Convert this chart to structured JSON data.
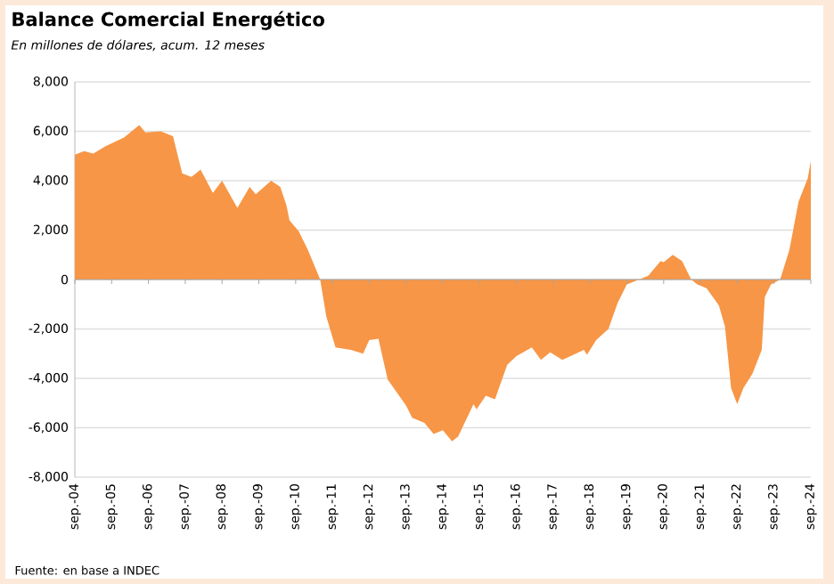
{
  "chart_data": {
    "type": "area",
    "title": "Balance Comercial Energético",
    "subtitle": "En millones de dólares, acum. 12 meses",
    "annotations": [
      "Fuente: en base a INDEC"
    ],
    "x": [
      "2004-09",
      "2004-12",
      "2005-03",
      "2005-07",
      "2006-01",
      "2006-06",
      "2006-08",
      "2007-01",
      "2007-05",
      "2007-08",
      "2007-11",
      "2008-02",
      "2008-06",
      "2008-09",
      "2009-02",
      "2009-06",
      "2009-08",
      "2010-01",
      "2010-04",
      "2010-06",
      "2010-07",
      "2010-10",
      "2011-01",
      "2011-05",
      "2011-07",
      "2011-10",
      "2012-03",
      "2012-07",
      "2012-09",
      "2012-12",
      "2013-03",
      "2013-09",
      "2013-11",
      "2014-03",
      "2014-06",
      "2014-09",
      "2014-12",
      "2015-02",
      "2015-07",
      "2015-08",
      "2015-11",
      "2016-02",
      "2016-06",
      "2016-09",
      "2017-02",
      "2017-05",
      "2017-08",
      "2017-12",
      "2018-07",
      "2018-08",
      "2018-11",
      "2019-03",
      "2019-06",
      "2019-09",
      "2019-11",
      "2020-04",
      "2020-08",
      "2020-09",
      "2020-12",
      "2021-03",
      "2021-06",
      "2021-08",
      "2021-11",
      "2022-03",
      "2022-05",
      "2022-07",
      "2022-09",
      "2022-11",
      "2023-02",
      "2023-05",
      "2023-06",
      "2023-08",
      "2023-11",
      "2024-02",
      "2024-05",
      "2024-08",
      "2024-09"
    ],
    "series": [
      {
        "color": "#f79646",
        "values": [
          5050,
          5200,
          5100,
          5400,
          5750,
          6250,
          5950,
          6000,
          5800,
          4300,
          4150,
          4450,
          3500,
          4000,
          2900,
          3750,
          3450,
          4000,
          3750,
          3000,
          2400,
          1950,
          1200,
          0,
          -1500,
          -2750,
          -2850,
          -3000,
          -2450,
          -2400,
          -4050,
          -5100,
          -5600,
          -5800,
          -6250,
          -6100,
          -6550,
          -6350,
          -5050,
          -5250,
          -4700,
          -4850,
          -3450,
          -3100,
          -2750,
          -3250,
          -2950,
          -3250,
          -2850,
          -3050,
          -2450,
          -2000,
          -950,
          -200,
          -100,
          150,
          750,
          700,
          1000,
          750,
          0,
          -200,
          -350,
          -1050,
          -1900,
          -4400,
          -5050,
          -4400,
          -3800,
          -2850,
          -700,
          -200,
          0,
          1200,
          3150,
          4100,
          4800
        ]
      }
    ],
    "xlim": [
      "2004-09",
      "2024-09"
    ],
    "xticks": [
      {
        "value": "2004-09",
        "label": "sep.-04"
      },
      {
        "value": "2005-09",
        "label": "sep.-05"
      },
      {
        "value": "2006-09",
        "label": "sep.-06"
      },
      {
        "value": "2007-09",
        "label": "sep.-07"
      },
      {
        "value": "2008-09",
        "label": "sep.-08"
      },
      {
        "value": "2009-09",
        "label": "sep.-09"
      },
      {
        "value": "2010-09",
        "label": "sep.-10"
      },
      {
        "value": "2011-09",
        "label": "sep.-11"
      },
      {
        "value": "2012-09",
        "label": "sep.-12"
      },
      {
        "value": "2013-09",
        "label": "sep.-13"
      },
      {
        "value": "2014-09",
        "label": "sep.-14"
      },
      {
        "value": "2015-09",
        "label": "sep.-15"
      },
      {
        "value": "2016-09",
        "label": "sep.-16"
      },
      {
        "value": "2017-09",
        "label": "sep.-17"
      },
      {
        "value": "2018-09",
        "label": "sep.-18"
      },
      {
        "value": "2019-09",
        "label": "sep.-19"
      },
      {
        "value": "2020-09",
        "label": "sep.-20"
      },
      {
        "value": "2021-09",
        "label": "sep.-21"
      },
      {
        "value": "2022-09",
        "label": "sep.-22"
      },
      {
        "value": "2023-09",
        "label": "sep.-23"
      },
      {
        "value": "2024-09",
        "label": "sep.-24"
      }
    ],
    "ylim": [
      -8000,
      8000
    ],
    "yticks": [
      {
        "value": -8000,
        "label": "-8,000"
      },
      {
        "value": -6000,
        "label": "-6,000"
      },
      {
        "value": -4000,
        "label": "-4,000"
      },
      {
        "value": -2000,
        "label": "-2,000"
      },
      0,
      {
        "value": 2000,
        "label": "2,000"
      },
      {
        "value": 4000,
        "label": "4,000"
      },
      {
        "value": 6000,
        "label": "6,000"
      },
      {
        "value": 8000,
        "label": "8,000"
      }
    ],
    "grid": "y"
  }
}
